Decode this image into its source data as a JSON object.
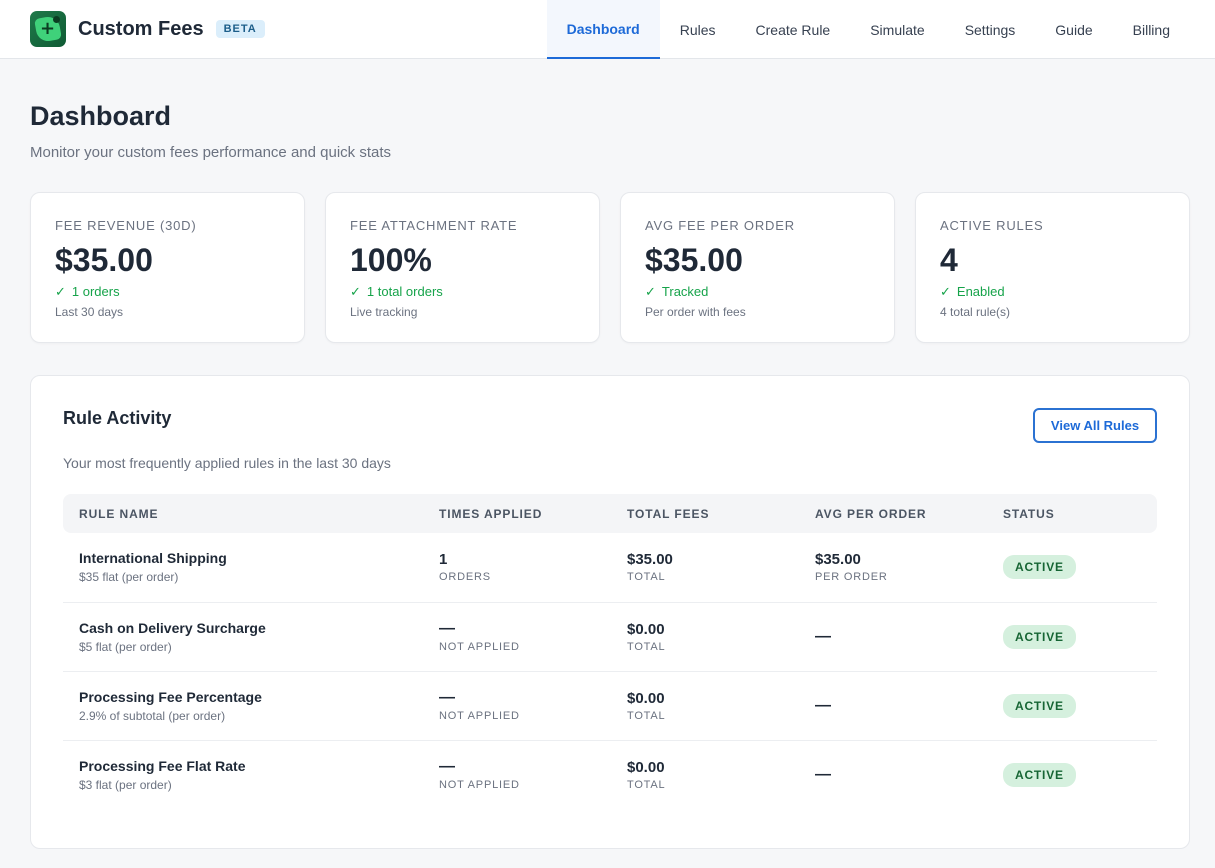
{
  "app": {
    "name": "Custom Fees",
    "badge": "BETA",
    "logo_glyph": "+"
  },
  "nav": {
    "items": [
      {
        "label": "Dashboard",
        "active": true
      },
      {
        "label": "Rules",
        "active": false
      },
      {
        "label": "Create Rule",
        "active": false
      },
      {
        "label": "Simulate",
        "active": false
      },
      {
        "label": "Settings",
        "active": false
      },
      {
        "label": "Guide",
        "active": false
      },
      {
        "label": "Billing",
        "active": false
      }
    ]
  },
  "page": {
    "title": "Dashboard",
    "subtitle": "Monitor your custom fees performance and quick stats"
  },
  "stats": [
    {
      "label": "FEE REVENUE (30D)",
      "value": "$35.00",
      "check": "✓",
      "trend": "1 orders",
      "note": "Last 30 days"
    },
    {
      "label": "FEE ATTACHMENT RATE",
      "value": "100%",
      "check": "✓",
      "trend": "1 total orders",
      "note": "Live tracking"
    },
    {
      "label": "AVG FEE PER ORDER",
      "value": "$35.00",
      "check": "✓",
      "trend": "Tracked",
      "note": "Per order with fees"
    },
    {
      "label": "ACTIVE RULES",
      "value": "4",
      "check": "✓",
      "trend": "Enabled",
      "note": "4 total rule(s)"
    }
  ],
  "activity": {
    "title": "Rule Activity",
    "subtitle": "Your most frequently applied rules in the last 30 days",
    "view_all_label": "View All Rules",
    "columns": [
      "RULE NAME",
      "TIMES APPLIED",
      "TOTAL FEES",
      "AVG PER ORDER",
      "STATUS"
    ],
    "rows": [
      {
        "name": "International Shipping",
        "desc": "$35 flat (per order)",
        "times": "1",
        "times_sub": "ORDERS",
        "total": "$35.00",
        "total_sub": "TOTAL",
        "avg": "$35.00",
        "avg_sub": "PER ORDER",
        "status": "ACTIVE"
      },
      {
        "name": "Cash on Delivery Surcharge",
        "desc": "$5 flat (per order)",
        "times": "—",
        "times_sub": "NOT APPLIED",
        "total": "$0.00",
        "total_sub": "TOTAL",
        "avg": "—",
        "avg_sub": "",
        "status": "ACTIVE"
      },
      {
        "name": "Processing Fee Percentage",
        "desc": "2.9% of subtotal (per order)",
        "times": "—",
        "times_sub": "NOT APPLIED",
        "total": "$0.00",
        "total_sub": "TOTAL",
        "avg": "—",
        "avg_sub": "",
        "status": "ACTIVE"
      },
      {
        "name": "Processing Fee Flat Rate",
        "desc": "$3 flat (per order)",
        "times": "—",
        "times_sub": "NOT APPLIED",
        "total": "$0.00",
        "total_sub": "TOTAL",
        "avg": "—",
        "avg_sub": "",
        "status": "ACTIVE"
      }
    ]
  },
  "colors": {
    "accent": "#1d6ad8",
    "success": "#16a34a",
    "status_bg": "#d5f0de",
    "logo_green": "#1f7a4a"
  }
}
